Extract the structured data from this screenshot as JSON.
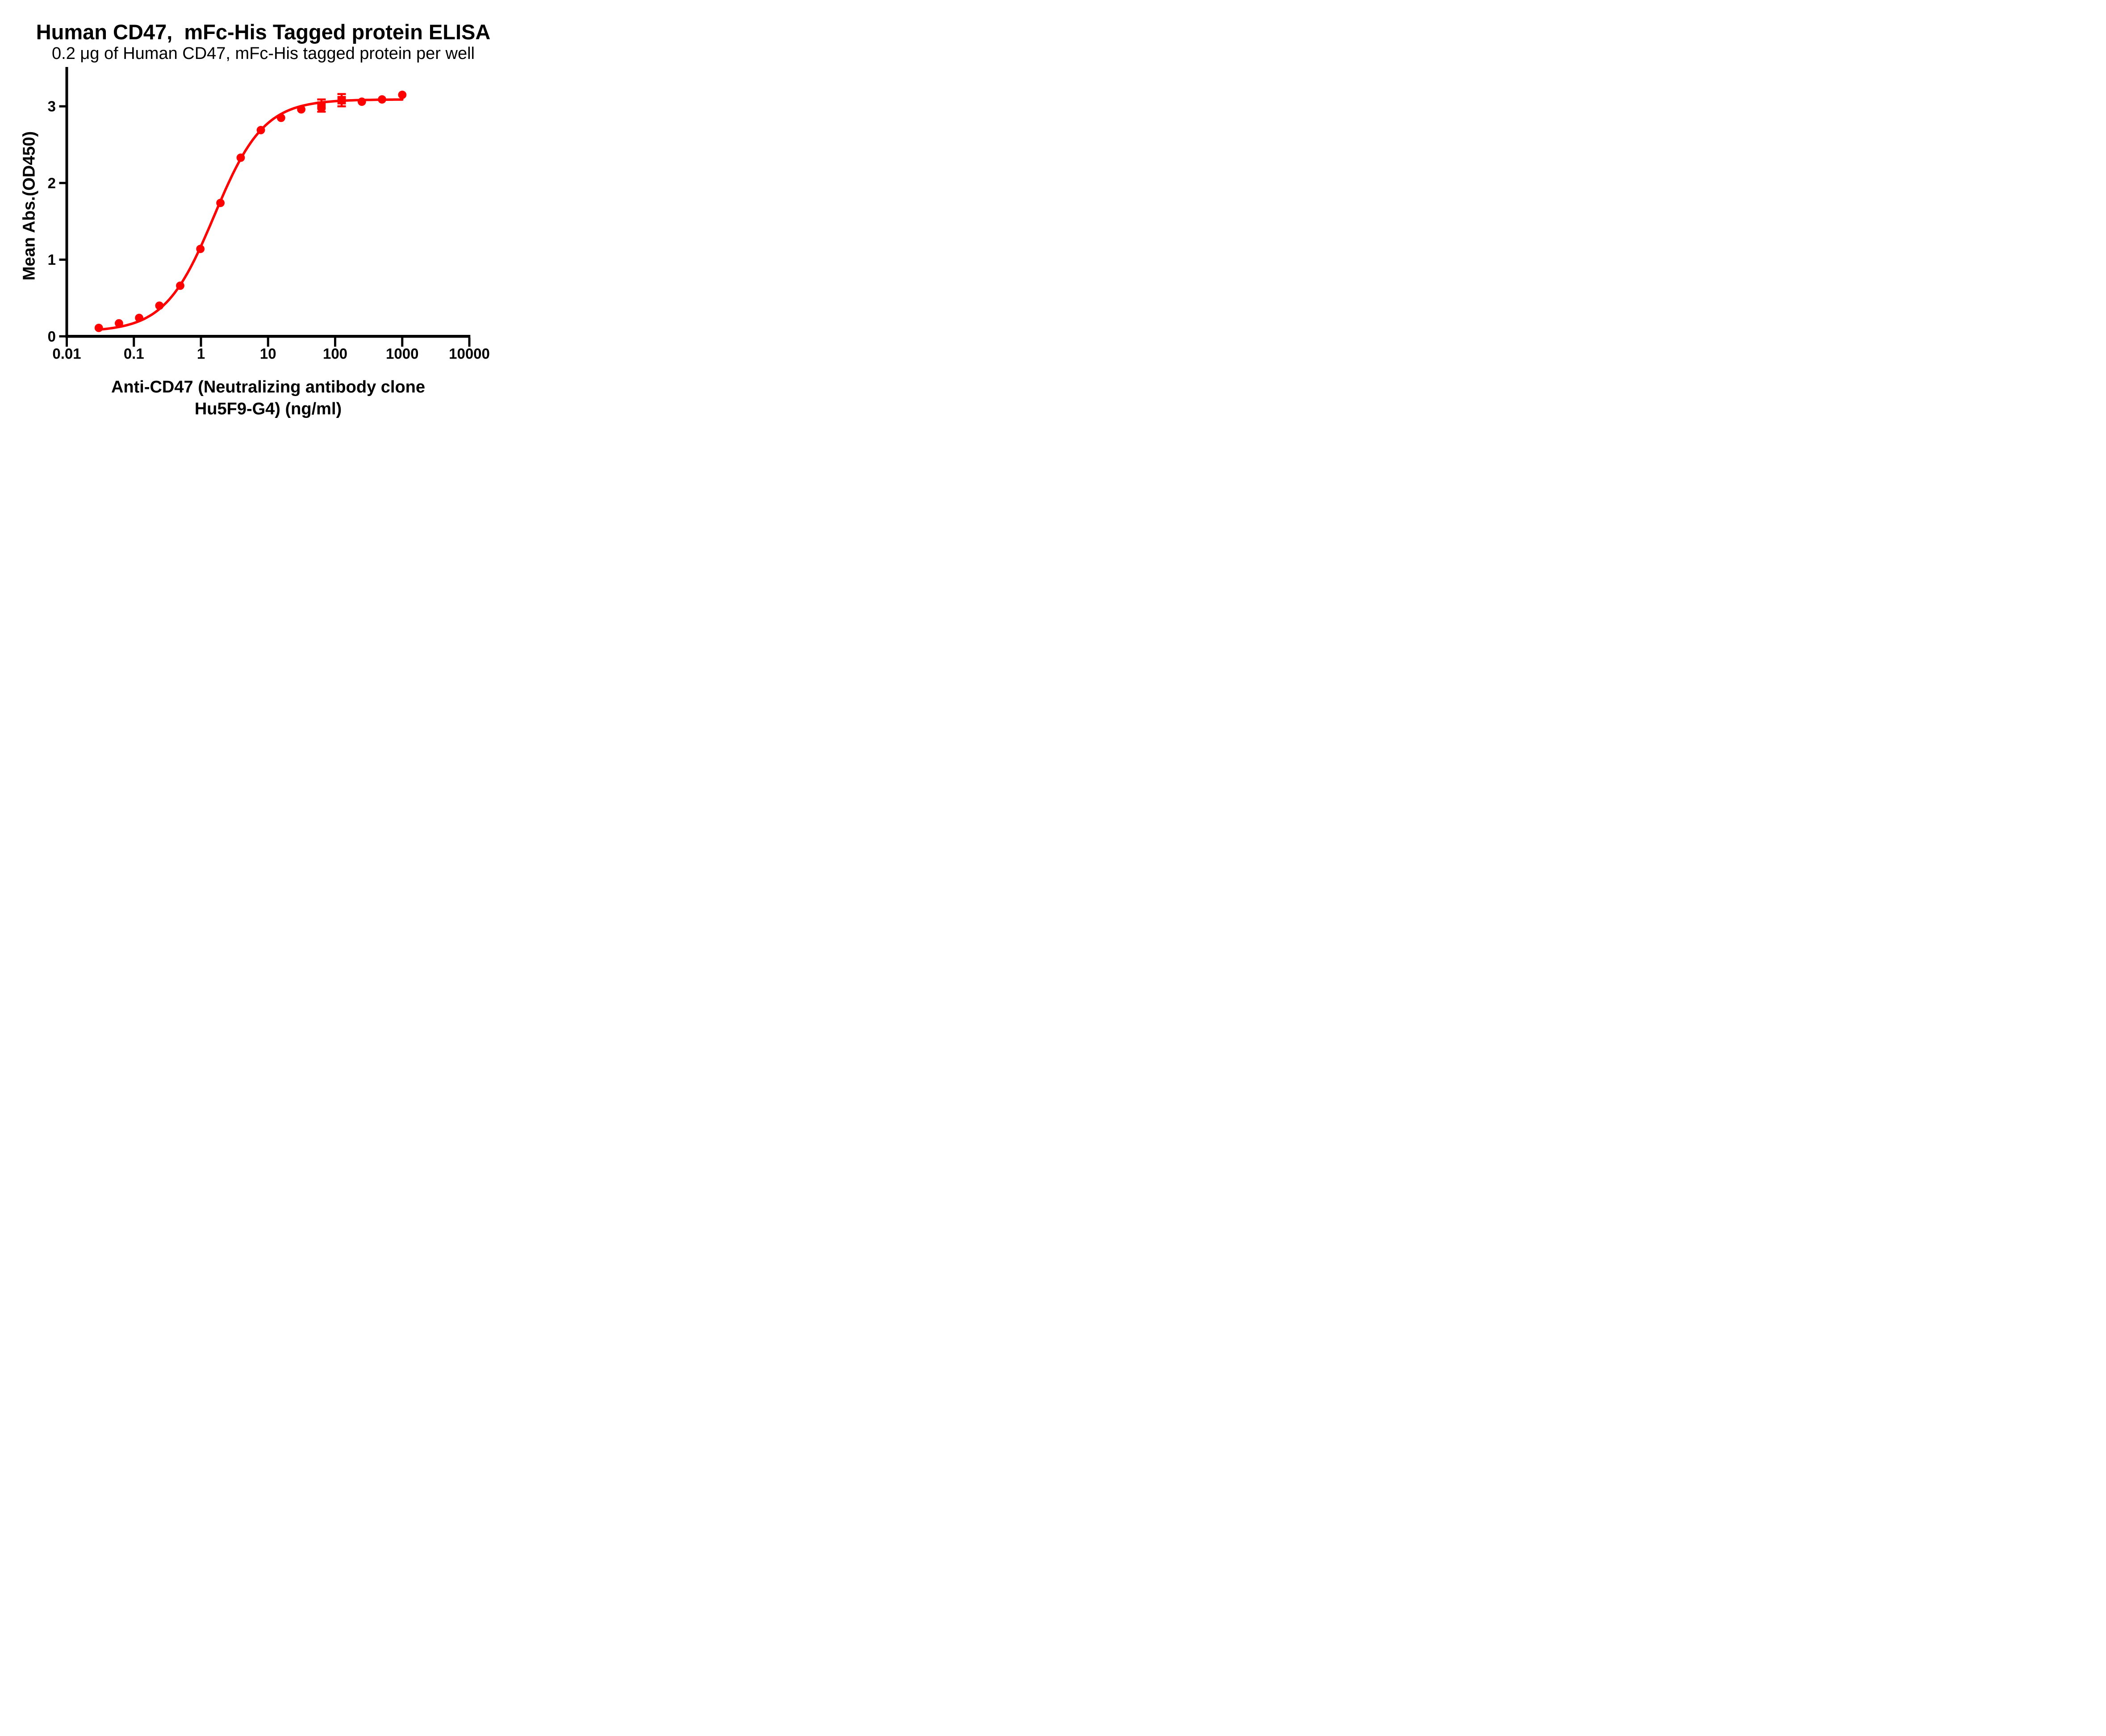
{
  "chart_data": {
    "type": "scatter",
    "title": "Human CD47,  mFc-His Tagged protein ELISA",
    "subtitle": "0.2 μg of Human CD47, mFc-His tagged protein per well",
    "xlabel_line1": "Anti-CD47 (Neutralizing antibody clone",
    "xlabel_line2": "Hu5F9-G4) (ng/ml)",
    "ylabel": "Mean Abs.(OD450)",
    "x_scale": "log10",
    "xlim": [
      0.01,
      10000
    ],
    "ylim": [
      0,
      3.5
    ],
    "x_ticks": [
      0.01,
      0.1,
      1,
      10,
      100,
      1000,
      10000
    ],
    "x_tick_labels": [
      "0.01",
      "0.1",
      "1",
      "10",
      "100",
      "1000",
      "10000"
    ],
    "y_ticks": [
      0,
      1,
      2,
      3
    ],
    "y_tick_labels": [
      "0",
      "1",
      "2",
      "3"
    ],
    "grid": false,
    "legend": "none",
    "accent_color": "#FF0000",
    "axis_color": "#000000",
    "series": [
      {
        "marker": "circle",
        "color": "#FF0000",
        "x": [
          0.03,
          0.06,
          0.12,
          0.24,
          0.49,
          0.98,
          1.95,
          3.91,
          7.81,
          15.63,
          31.25,
          62.5,
          125,
          250,
          500,
          1000
        ],
        "y": [
          0.11,
          0.17,
          0.24,
          0.4,
          0.66,
          1.14,
          1.74,
          2.33,
          2.69,
          2.85,
          2.96,
          2.98,
          3.08,
          3.06,
          3.09,
          3.15
        ]
      },
      {
        "marker": "square",
        "color": "#FF0000",
        "x": [
          62.5,
          125
        ],
        "y": [
          3.01,
          3.08
        ],
        "sd": [
          0.08,
          0.08
        ]
      }
    ],
    "fit_curve": {
      "model": "4PL",
      "bottom": 0.06,
      "top": 3.09,
      "ec50": 1.58,
      "hill": 1.18,
      "x_range": [
        0.03,
        1000
      ],
      "color": "#FF0000"
    }
  }
}
